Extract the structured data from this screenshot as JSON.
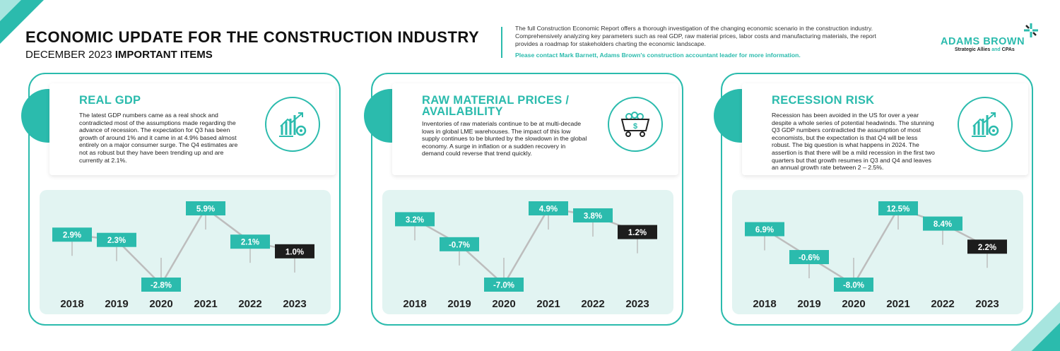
{
  "header": {
    "title": "ECONOMIC UPDATE FOR THE CONSTRUCTION INDUSTRY",
    "subtitle_prefix": "DECEMBER 2023",
    "subtitle_bold": "IMPORTANT ITEMS",
    "intro": "The full Construction Economic Report offers a thorough investigation of the changing economic scenario in the construction industry. Comprehensively analyzing key parameters such as real GDP, raw material prices, labor costs and manufacturing materials, the report provides a roadmap for stakeholders charting the economic landscape.",
    "contact": "Please contact Mark Barnett, Adams Brown's construction accountant leader for more information.",
    "logo_name": "ADAMS BROWN",
    "logo_tag_a": "Strategic Allies ",
    "logo_tag_b": "and",
    "logo_tag_c": " CPAs"
  },
  "colors": {
    "accent": "#2bbbad",
    "light_accent": "#a7e5df",
    "chart_bg": "#e2f4f2",
    "label_dark": "#1d1d1d",
    "connector": "#bdbdbd"
  },
  "panels": [
    {
      "title": "REAL GDP",
      "text": "The latest GDP numbers came as a real shock and contradicted most of the assumptions made regarding the advance of recession. The expectation for Q3 has been growth of around 1% and it came in at 4.9% based almost entirely on a major consumer surge. The Q4 estimates are not as robust but they have been trending up and are currently at 2.1%.",
      "icon": "growth-chart-gear-icon"
    },
    {
      "title": "RAW MATERIAL PRICES / AVAILABILITY",
      "text": "Inventories of raw materials continue to be at multi-decade lows in global LME warehouses. The impact of this low supply continues to be blunted by the slowdown in the global economy. A surge in inflation or a sudden recovery in demand could reverse that trend quickly.",
      "icon": "mine-cart-dollar-icon"
    },
    {
      "title": "RECESSION RISK",
      "text": "Recession has been avoided in the US for over a year despite a whole series of potential headwinds. The stunning Q3 GDP numbers contradicted the assumption of most economists, but the expectation is that Q4 will be less robust. The big question is what happens in 2024. The assertion is that there will be a mild recession in the first two quarters but that growth resumes in Q3 and Q4 and leaves an annual growth rate between 2 – 2.5%.",
      "icon": "growth-chart-gear-icon"
    }
  ],
  "chart_data": [
    {
      "type": "line",
      "categories": [
        "2018",
        "2019",
        "2020",
        "2021",
        "2022",
        "2023"
      ],
      "values": [
        2.9,
        2.3,
        -2.8,
        5.9,
        2.1,
        1.0
      ],
      "labels": [
        "2.9%",
        "2.3%",
        "-2.8%",
        "5.9%",
        "2.1%",
        "1.0%"
      ],
      "highlight_last": true
    },
    {
      "type": "line",
      "categories": [
        "2018",
        "2019",
        "2020",
        "2021",
        "2022",
        "2023"
      ],
      "values": [
        3.2,
        -0.7,
        -7.0,
        4.9,
        3.8,
        1.2
      ],
      "labels": [
        "3.2%",
        "-0.7%",
        "-7.0%",
        "4.9%",
        "3.8%",
        "1.2%"
      ],
      "highlight_last": true
    },
    {
      "type": "line",
      "categories": [
        "2018",
        "2019",
        "2020",
        "2021",
        "2022",
        "2023"
      ],
      "values": [
        6.9,
        -0.6,
        -8.0,
        12.5,
        8.4,
        2.2
      ],
      "labels": [
        "6.9%",
        "-0.6%",
        "-8.0%",
        "12.5%",
        "8.4%",
        "2.2%"
      ],
      "highlight_last": true
    }
  ]
}
